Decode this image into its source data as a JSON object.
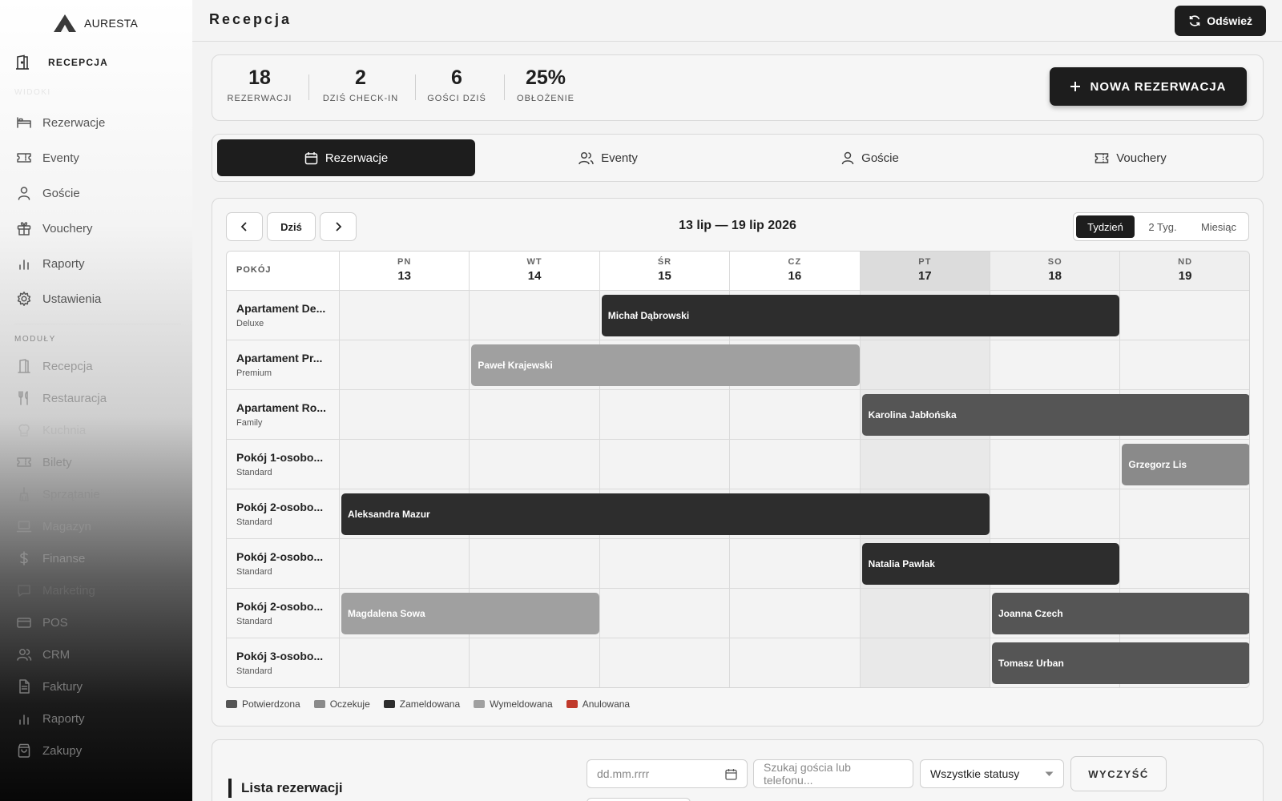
{
  "brand": {
    "name": "AURESTA"
  },
  "sidebar": {
    "active_label": "RECEPCJA",
    "section_views": "WIDOKI",
    "section_modules": "MODUŁY",
    "views": [
      {
        "label": "Rezerwacje",
        "icon": "bed-icon"
      },
      {
        "label": "Eventy",
        "icon": "ticket-icon"
      },
      {
        "label": "Goście",
        "icon": "user-icon"
      },
      {
        "label": "Vouchery",
        "icon": "gift-icon"
      },
      {
        "label": "Raporty",
        "icon": "bar-chart-icon"
      },
      {
        "label": "Ustawienia",
        "icon": "gear-icon"
      }
    ],
    "modules": [
      {
        "label": "Recepcja",
        "icon": "door-icon"
      },
      {
        "label": "Restauracja",
        "icon": "fork-knife-icon"
      },
      {
        "label": "Kuchnia",
        "icon": "chef-hat-icon"
      },
      {
        "label": "Bilety",
        "icon": "ticket-icon"
      },
      {
        "label": "Sprzątanie",
        "icon": "broom-icon"
      },
      {
        "label": "Magazyn",
        "icon": "laptop-icon"
      },
      {
        "label": "Finanse",
        "icon": "dollar-icon"
      },
      {
        "label": "Marketing",
        "icon": "chat-icon"
      },
      {
        "label": "POS",
        "icon": "card-icon"
      },
      {
        "label": "CRM",
        "icon": "users-icon"
      },
      {
        "label": "Faktury",
        "icon": "document-icon"
      },
      {
        "label": "Raporty",
        "icon": "bar-chart-icon"
      },
      {
        "label": "Zakupy",
        "icon": "bag-icon"
      }
    ]
  },
  "header": {
    "title": "Recepcja",
    "refresh_label": "Odśwież"
  },
  "stats": [
    {
      "value": "18",
      "label": "REZERWACJI"
    },
    {
      "value": "2",
      "label": "DZIŚ CHECK-IN"
    },
    {
      "value": "6",
      "label": "GOŚCI DZIŚ"
    },
    {
      "value": "25%",
      "label": "OBŁOŻENIE"
    }
  ],
  "new_reservation_label": "NOWA REZERWACJA",
  "tabs": [
    {
      "label": "Rezerwacje",
      "icon": "calendar-icon",
      "active": true
    },
    {
      "label": "Eventy",
      "icon": "users-icon",
      "active": false
    },
    {
      "label": "Goście",
      "icon": "user-icon",
      "active": false
    },
    {
      "label": "Vouchery",
      "icon": "ticket-icon",
      "active": false
    }
  ],
  "calendar": {
    "today_label": "Dziś",
    "range": "13 lip — 19 lip 2026",
    "views": [
      "Tydzień",
      "2 Tyg.",
      "Miesiąc"
    ],
    "active_view": "Tydzień",
    "room_header": "POKÓJ",
    "days": [
      {
        "name": "PN",
        "num": "13"
      },
      {
        "name": "WT",
        "num": "14"
      },
      {
        "name": "ŚR",
        "num": "15"
      },
      {
        "name": "CZ",
        "num": "16"
      },
      {
        "name": "PT",
        "num": "17"
      },
      {
        "name": "SO",
        "num": "18"
      },
      {
        "name": "ND",
        "num": "19"
      }
    ],
    "today_index": 4,
    "rooms": [
      {
        "name": "Apartament De...",
        "type": "Deluxe"
      },
      {
        "name": "Apartament Pr...",
        "type": "Premium"
      },
      {
        "name": "Apartament Ro...",
        "type": "Family"
      },
      {
        "name": "Pokój 1-osobo...",
        "type": "Standard"
      },
      {
        "name": "Pokój 2-osobo...",
        "type": "Standard"
      },
      {
        "name": "Pokój 2-osobo...",
        "type": "Standard"
      },
      {
        "name": "Pokój 2-osobo...",
        "type": "Standard"
      },
      {
        "name": "Pokój 3-osobo...",
        "type": "Standard"
      }
    ],
    "reservations": [
      {
        "room": 0,
        "start": 2,
        "end": 6,
        "guest": "Michał Dąbrowski",
        "status": "Zameldowana"
      },
      {
        "room": 1,
        "start": 1,
        "end": 4,
        "guest": "Paweł Krajewski",
        "status": "Wymeldowana"
      },
      {
        "room": 2,
        "start": 4,
        "end": 7,
        "guest": "Karolina Jabłońska",
        "status": "Potwierdzona"
      },
      {
        "room": 3,
        "start": 6,
        "end": 7,
        "guest": "Grzegorz Lis",
        "status": "Oczekuje"
      },
      {
        "room": 4,
        "start": 0,
        "end": 5,
        "guest": "Aleksandra Mazur",
        "status": "Zameldowana"
      },
      {
        "room": 5,
        "start": 4,
        "end": 6,
        "guest": "Natalia Pawlak",
        "status": "Zameldowana"
      },
      {
        "room": 6,
        "start": 0,
        "end": 2,
        "guest": "Magdalena Sowa",
        "status": "Wymeldowana"
      },
      {
        "room": 6,
        "start": 5,
        "end": 7,
        "guest": "Joanna Czech",
        "status": "Potwierdzona"
      },
      {
        "room": 7,
        "start": 5,
        "end": 7,
        "guest": "Tomasz Urban",
        "status": "Potwierdzona"
      }
    ],
    "legend": [
      {
        "label": "Potwierdzona",
        "color": "#555555"
      },
      {
        "label": "Oczekuje",
        "color": "#8a8a8a"
      },
      {
        "label": "Zameldowana",
        "color": "#2d2d2d"
      },
      {
        "label": "Wymeldowana",
        "color": "#a0a0a0"
      },
      {
        "label": "Anulowana",
        "color": "#c0392b"
      }
    ]
  },
  "list": {
    "title": "Lista rezerwacji",
    "date_placeholder": "dd.mm.rrrr",
    "search_placeholder": "Szukaj gościa lub telefonu...",
    "status_value": "Wszystkie statusy",
    "clear_label": "WYCZYŚĆ"
  }
}
